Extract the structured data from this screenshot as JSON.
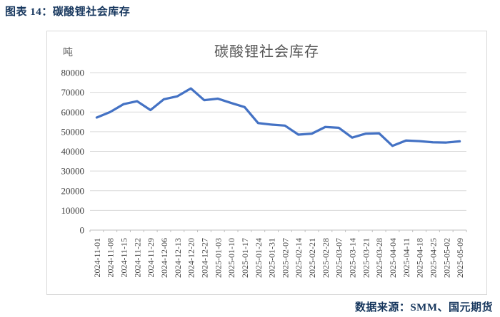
{
  "page": {
    "header": "图表 14：碳酸锂社会库存",
    "footer": "数据来源：SMM、国元期货"
  },
  "colors": {
    "accent_navy": "#17375E",
    "title_gray": "#595959",
    "gridline": "#D9D9D9",
    "axis_line": "#BFBFBF",
    "tick_text": "#404040",
    "series_blue": "#4472C4"
  },
  "chart_data": {
    "type": "line",
    "title": "碳酸锂社会库存",
    "unit_label": "吨",
    "xlabel": "",
    "ylabel": "",
    "ylim": [
      0,
      80000
    ],
    "yticks": [
      0,
      10000,
      20000,
      30000,
      40000,
      50000,
      60000,
      70000,
      80000
    ],
    "grid": true,
    "legend_position": "none",
    "x": [
      "2024-11-01",
      "2024-11-08",
      "2024-11-15",
      "2024-11-22",
      "2024-11-29",
      "2024-12-06",
      "2024-12-13",
      "2024-12-20",
      "2024-12-27",
      "2025-01-03",
      "2025-01-10",
      "2025-01-17",
      "2025-01-24",
      "2025-01-31",
      "2025-02-07",
      "2025-02-14",
      "2025-02-21",
      "2025-02-28",
      "2025-03-07",
      "2025-03-14",
      "2025-03-21",
      "2025-03-28",
      "2025-04-04",
      "2025-04-11",
      "2025-04-18",
      "2025-04-25",
      "2025-05-02",
      "2025-05-09"
    ],
    "series": [
      {
        "name": "碳酸锂社会库存",
        "color": "#4472C4",
        "values": [
          57200,
          60000,
          64000,
          65500,
          61000,
          66500,
          68000,
          72000,
          66000,
          66800,
          64600,
          62500,
          54400,
          53600,
          53100,
          48500,
          49000,
          52400,
          52000,
          47000,
          49000,
          49200,
          42800,
          45500,
          45200,
          44600,
          44500,
          45100
        ]
      }
    ]
  }
}
